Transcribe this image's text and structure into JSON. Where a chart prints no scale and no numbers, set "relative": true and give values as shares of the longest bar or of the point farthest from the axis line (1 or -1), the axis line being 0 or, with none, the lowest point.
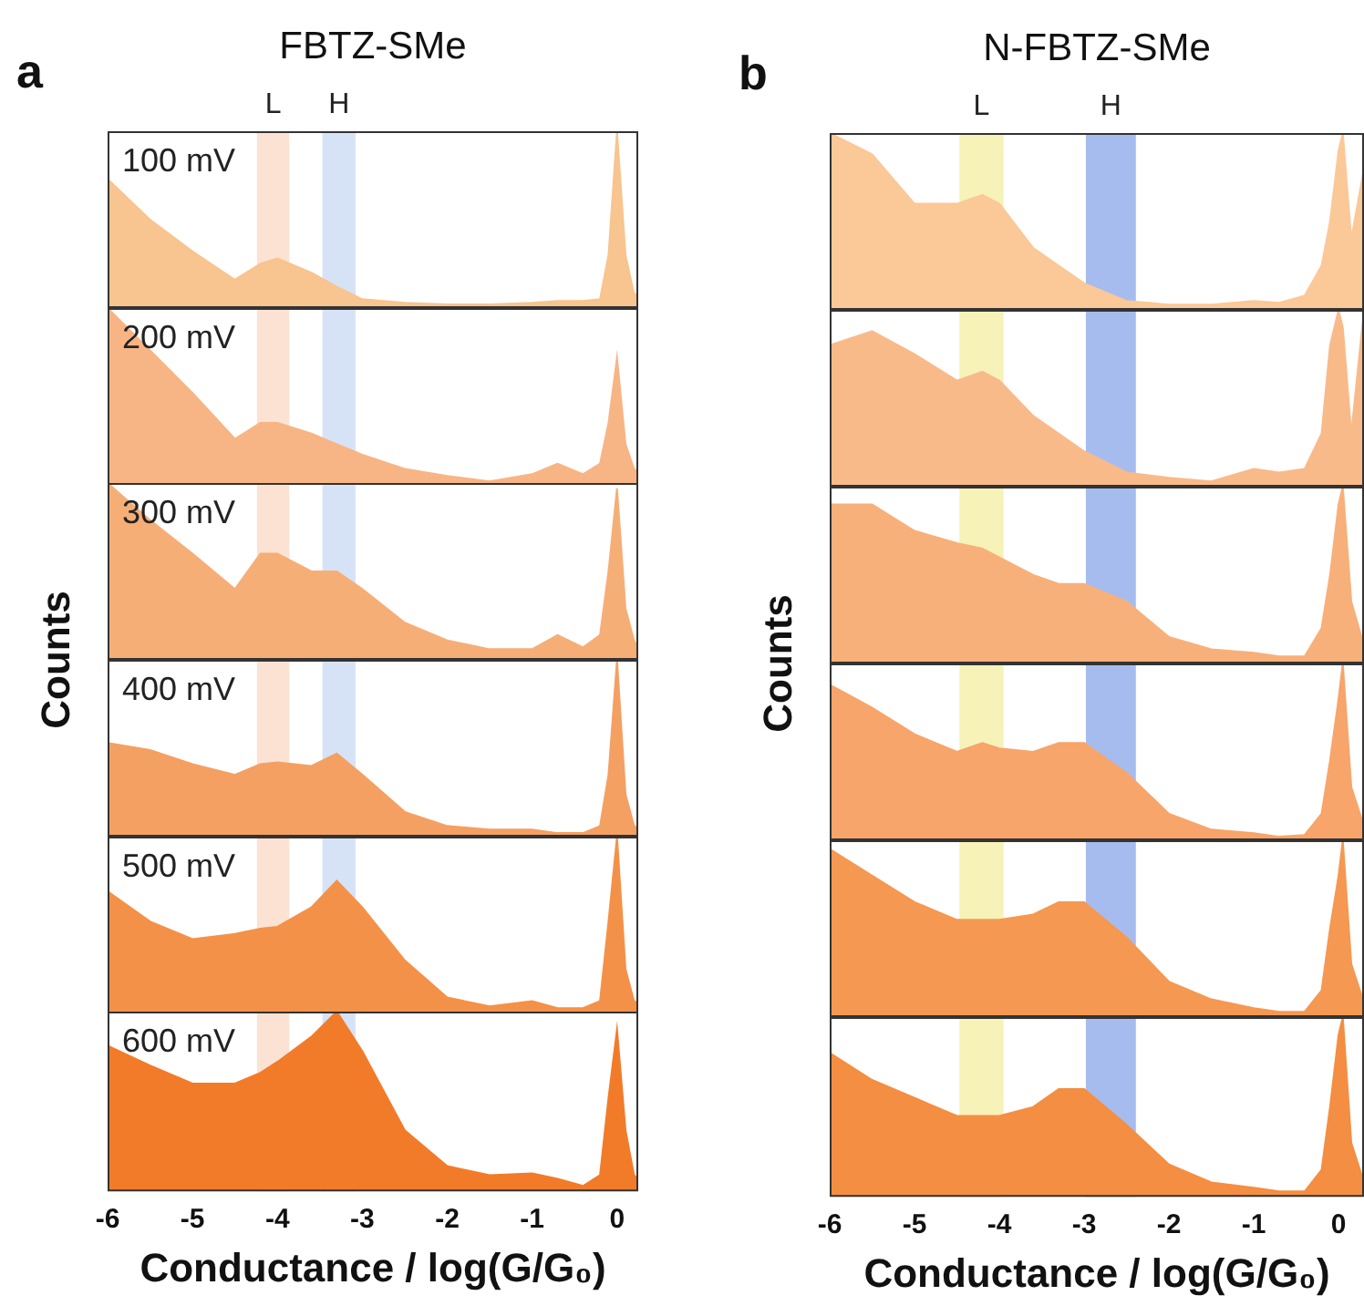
{
  "chart_data": [
    {
      "type": "area",
      "title": "FBTZ-SMe",
      "subtitle": "100 mV",
      "annotations": [
        "a"
      ],
      "relative": true,
      "tick_labels": false,
      "xlim": [
        -6,
        0.25
      ],
      "x": [
        -6,
        -5.5,
        -5,
        -4.5,
        -4.2,
        -4,
        -3.6,
        -3.3,
        -3,
        -2.5,
        -2,
        -1.5,
        -1,
        -0.7,
        -0.4,
        -0.2,
        -0.1,
        0,
        0.1,
        0.2,
        0.25
      ],
      "series": [
        {
          "color": "#f8c48f",
          "values": [
            0.73,
            0.5,
            0.32,
            0.16,
            0.25,
            0.28,
            0.2,
            0.12,
            0.05,
            0.03,
            0.02,
            0.02,
            0.03,
            0.04,
            0.04,
            0.05,
            0.3,
            1,
            0.3,
            0.08,
            0.08
          ]
        }
      ],
      "bands": [
        {
          "axis": "x",
          "from": -4.24,
          "to": -3.86,
          "label": "L",
          "color": "#fbe2d3"
        },
        {
          "axis": "x",
          "from": -3.47,
          "to": -3.08,
          "label": "H",
          "color": "#d6e3f7"
        }
      ]
    },
    {
      "type": "area",
      "subtitle": "200 mV",
      "relative": true,
      "tick_labels": false,
      "xlim": [
        -6,
        0.25
      ],
      "x": [
        -6,
        -5.5,
        -5,
        -4.5,
        -4.2,
        -4,
        -3.6,
        -3.3,
        -3,
        -2.5,
        -2,
        -1.5,
        -1,
        -0.7,
        -0.4,
        -0.2,
        -0.1,
        0,
        0.1,
        0.2,
        0.25
      ],
      "series": [
        {
          "color": "#f7b585",
          "values": [
            1,
            0.76,
            0.52,
            0.26,
            0.35,
            0.35,
            0.29,
            0.23,
            0.17,
            0.09,
            0.05,
            0.02,
            0.06,
            0.12,
            0.06,
            0.12,
            0.35,
            0.72,
            0.23,
            0.09,
            0.07
          ]
        }
      ],
      "bands": [
        {
          "axis": "x",
          "from": -4.24,
          "to": -3.86,
          "color": "#fbe2d3"
        },
        {
          "axis": "x",
          "from": -3.47,
          "to": -3.08,
          "color": "#d6e3f7"
        }
      ]
    },
    {
      "type": "area",
      "subtitle": "300 mV",
      "ylabel": "Counts",
      "relative": true,
      "tick_labels": false,
      "xlim": [
        -6,
        0.25
      ],
      "x": [
        -6,
        -5.5,
        -5,
        -4.5,
        -4.2,
        -4,
        -3.6,
        -3.3,
        -3,
        -2.5,
        -2,
        -1.5,
        -1,
        -0.7,
        -0.4,
        -0.2,
        -0.1,
        0,
        0.1,
        0.2,
        0.25
      ],
      "series": [
        {
          "color": "#f6ae77",
          "values": [
            1,
            0.79,
            0.6,
            0.4,
            0.6,
            0.6,
            0.5,
            0.5,
            0.4,
            0.21,
            0.11,
            0.06,
            0.06,
            0.14,
            0.07,
            0.14,
            0.5,
            0.97,
            0.29,
            0.11,
            0.07
          ]
        }
      ],
      "bands": [
        {
          "axis": "x",
          "from": -4.24,
          "to": -3.86,
          "color": "#fbe2d3"
        },
        {
          "axis": "x",
          "from": -3.47,
          "to": -3.08,
          "color": "#d6e3f7"
        }
      ]
    },
    {
      "type": "area",
      "subtitle": "400 mV",
      "relative": true,
      "tick_labels": false,
      "xlim": [
        -6,
        0.25
      ],
      "x": [
        -6,
        -5.5,
        -5,
        -4.5,
        -4.2,
        -4,
        -3.6,
        -3.3,
        -3,
        -2.5,
        -2,
        -1.5,
        -1,
        -0.7,
        -0.4,
        -0.2,
        -0.1,
        0,
        0.1,
        0.2,
        0.25
      ],
      "series": [
        {
          "color": "#f4a063",
          "values": [
            0.53,
            0.49,
            0.41,
            0.35,
            0.41,
            0.42,
            0.4,
            0.47,
            0.35,
            0.14,
            0.06,
            0.04,
            0.04,
            0.02,
            0.02,
            0.06,
            0.35,
            1,
            0.24,
            0.06,
            0.05
          ]
        }
      ],
      "bands": [
        {
          "axis": "x",
          "from": -4.24,
          "to": -3.86,
          "color": "#fbe2d3"
        },
        {
          "axis": "x",
          "from": -3.47,
          "to": -3.08,
          "color": "#d6e3f7"
        }
      ]
    },
    {
      "type": "area",
      "subtitle": "500 mV",
      "relative": true,
      "tick_labels": false,
      "xlim": [
        -6,
        0.25
      ],
      "x": [
        -6,
        -5.5,
        -5,
        -4.5,
        -4.2,
        -4,
        -3.6,
        -3.3,
        -3,
        -2.5,
        -2,
        -1.5,
        -1,
        -0.7,
        -0.4,
        -0.2,
        -0.1,
        0,
        0.1,
        0.2,
        0.25
      ],
      "series": [
        {
          "color": "#f49148",
          "values": [
            0.69,
            0.52,
            0.42,
            0.45,
            0.48,
            0.49,
            0.6,
            0.75,
            0.6,
            0.3,
            0.09,
            0.04,
            0.07,
            0.03,
            0.03,
            0.07,
            0.52,
            1,
            0.25,
            0.07,
            0.06
          ]
        }
      ],
      "bands": [
        {
          "axis": "x",
          "from": -4.24,
          "to": -3.86,
          "color": "#fbe2d3"
        },
        {
          "axis": "x",
          "from": -3.47,
          "to": -3.08,
          "color": "#d6e3f7"
        }
      ]
    },
    {
      "type": "area",
      "subtitle": "600 mV",
      "xlabel": "Conductance / log(G/G₀)",
      "relative": true,
      "tick_labels": "x",
      "xlim": [
        -6,
        0.25
      ],
      "xticks": [
        -6,
        -5,
        -4,
        -3,
        -2,
        -1,
        0
      ],
      "x": [
        -6,
        -5.5,
        -5,
        -4.5,
        -4.2,
        -4,
        -3.6,
        -3.3,
        -3,
        -2.5,
        -2,
        -1.5,
        -1,
        -0.7,
        -0.4,
        -0.2,
        -0.1,
        0,
        0.1,
        0.2,
        0.25
      ],
      "series": [
        {
          "color": "#f27b2a",
          "values": [
            0.81,
            0.7,
            0.6,
            0.6,
            0.66,
            0.72,
            0.86,
            1,
            0.78,
            0.34,
            0.14,
            0.09,
            0.1,
            0.07,
            0.03,
            0.09,
            0.52,
            0.9,
            0.34,
            0.09,
            0.07
          ]
        }
      ],
      "bands": [
        {
          "axis": "x",
          "from": -4.24,
          "to": -3.86,
          "color": "#fbe2d3"
        },
        {
          "axis": "x",
          "from": -3.47,
          "to": -3.08,
          "color": "#d6e3f7"
        }
      ]
    },
    {
      "type": "area",
      "title": "N-FBTZ-SMe",
      "annotations": [
        "b"
      ],
      "relative": true,
      "tick_labels": false,
      "xlim": [
        -6,
        0.3
      ],
      "x": [
        -6,
        -5.5,
        -5,
        -4.5,
        -4.2,
        -4,
        -3.6,
        -3.3,
        -3,
        -2.5,
        -2,
        -1.5,
        -1,
        -0.7,
        -0.4,
        -0.2,
        -0.1,
        0,
        0.05,
        0.15,
        0.3
      ],
      "series": [
        {
          "color": "#fbc898",
          "values": [
            1,
            0.88,
            0.6,
            0.6,
            0.65,
            0.6,
            0.35,
            0.25,
            0.15,
            0.05,
            0.03,
            0.03,
            0.05,
            0.04,
            0.08,
            0.25,
            0.5,
            0.9,
            1,
            0.4,
            0.8
          ]
        }
      ],
      "bands": [
        {
          "axis": "x",
          "from": -4.47,
          "to": -3.95,
          "label": "L",
          "color": "#f6f2b8"
        },
        {
          "axis": "x",
          "from": -2.98,
          "to": -2.39,
          "label": "H",
          "color": "#a6bcee"
        }
      ]
    },
    {
      "type": "area",
      "relative": true,
      "tick_labels": false,
      "xlim": [
        -6,
        0.3
      ],
      "x": [
        -6,
        -5.5,
        -5,
        -4.5,
        -4.2,
        -4,
        -3.6,
        -3.3,
        -3,
        -2.5,
        -2,
        -1.5,
        -1,
        -0.7,
        -0.4,
        -0.2,
        -0.1,
        0,
        0.05,
        0.15,
        0.3
      ],
      "series": [
        {
          "color": "#f9ba8a",
          "values": [
            0.8,
            0.88,
            0.75,
            0.6,
            0.65,
            0.6,
            0.4,
            0.3,
            0.2,
            0.08,
            0.05,
            0.03,
            0.1,
            0.08,
            0.1,
            0.3,
            0.8,
            1,
            0.9,
            0.3,
            1
          ]
        }
      ],
      "bands": [
        {
          "axis": "x",
          "from": -4.47,
          "to": -3.95,
          "color": "#f6f2b8"
        },
        {
          "axis": "x",
          "from": -2.98,
          "to": -2.39,
          "color": "#a6bcee"
        }
      ]
    },
    {
      "type": "area",
      "ylabel": "Counts",
      "relative": true,
      "tick_labels": false,
      "xlim": [
        -6,
        0.3
      ],
      "x": [
        -6,
        -5.5,
        -5,
        -4.5,
        -4.2,
        -4,
        -3.6,
        -3.3,
        -3,
        -2.5,
        -2,
        -1.5,
        -1,
        -0.7,
        -0.4,
        -0.2,
        -0.1,
        0,
        0.05,
        0.15,
        0.3
      ],
      "series": [
        {
          "color": "#f8b07a",
          "values": [
            0.9,
            0.9,
            0.75,
            0.68,
            0.65,
            0.6,
            0.5,
            0.45,
            0.45,
            0.35,
            0.15,
            0.08,
            0.06,
            0.04,
            0.04,
            0.2,
            0.5,
            0.9,
            1,
            0.35,
            0.1
          ]
        }
      ],
      "bands": [
        {
          "axis": "x",
          "from": -4.47,
          "to": -3.95,
          "color": "#f6f2b8"
        },
        {
          "axis": "x",
          "from": -2.98,
          "to": -2.39,
          "color": "#a6bcee"
        }
      ]
    },
    {
      "type": "area",
      "relative": true,
      "tick_labels": false,
      "xlim": [
        -6,
        0.3
      ],
      "x": [
        -6,
        -5.5,
        -5,
        -4.5,
        -4.2,
        -4,
        -3.6,
        -3.3,
        -3,
        -2.5,
        -2,
        -1.5,
        -1,
        -0.7,
        -0.4,
        -0.2,
        -0.1,
        0,
        0.05,
        0.15,
        0.3
      ],
      "series": [
        {
          "color": "#f7a56a",
          "values": [
            0.88,
            0.75,
            0.6,
            0.5,
            0.55,
            0.52,
            0.5,
            0.55,
            0.55,
            0.38,
            0.15,
            0.06,
            0.04,
            0.02,
            0.03,
            0.15,
            0.45,
            0.8,
            1,
            0.3,
            0.08
          ]
        }
      ],
      "bands": [
        {
          "axis": "x",
          "from": -4.47,
          "to": -3.95,
          "color": "#f6f2b8"
        },
        {
          "axis": "x",
          "from": -2.98,
          "to": -2.39,
          "color": "#a6bcee"
        }
      ]
    },
    {
      "type": "area",
      "relative": true,
      "tick_labels": false,
      "xlim": [
        -6,
        0.3
      ],
      "x": [
        -6,
        -5.5,
        -5,
        -4.5,
        -4.2,
        -4,
        -3.6,
        -3.3,
        -3,
        -2.5,
        -2,
        -1.5,
        -1,
        -0.7,
        -0.4,
        -0.2,
        -0.1,
        0,
        0.05,
        0.15,
        0.3
      ],
      "series": [
        {
          "color": "#f59852",
          "values": [
            0.95,
            0.8,
            0.65,
            0.55,
            0.55,
            0.55,
            0.58,
            0.65,
            0.65,
            0.45,
            0.2,
            0.1,
            0.05,
            0.03,
            0.03,
            0.15,
            0.5,
            0.8,
            1,
            0.3,
            0.08
          ]
        }
      ],
      "bands": [
        {
          "axis": "x",
          "from": -4.47,
          "to": -3.95,
          "color": "#f6f2b8"
        },
        {
          "axis": "x",
          "from": -2.98,
          "to": -2.39,
          "color": "#a6bcee"
        }
      ]
    },
    {
      "type": "area",
      "xlabel": "Conductance / log(G/G₀)",
      "relative": true,
      "tick_labels": "x",
      "xlim": [
        -6,
        0.3
      ],
      "xticks": [
        -6,
        -5,
        -4,
        -3,
        -2,
        -1,
        0
      ],
      "x": [
        -6,
        -5.5,
        -5,
        -4.5,
        -4.2,
        -4,
        -3.6,
        -3.3,
        -3,
        -2.5,
        -2,
        -1.5,
        -1,
        -0.7,
        -0.4,
        -0.2,
        -0.1,
        0,
        0.05,
        0.15,
        0.3
      ],
      "series": [
        {
          "color": "#f48e42",
          "values": [
            0.8,
            0.65,
            0.55,
            0.45,
            0.45,
            0.45,
            0.5,
            0.6,
            0.6,
            0.4,
            0.18,
            0.08,
            0.05,
            0.03,
            0.03,
            0.15,
            0.5,
            0.9,
            1,
            0.3,
            0.08
          ]
        }
      ],
      "bands": [
        {
          "axis": "x",
          "from": -4.47,
          "to": -3.95,
          "color": "#f6f2b8"
        },
        {
          "axis": "x",
          "from": -2.98,
          "to": -2.39,
          "color": "#a6bcee"
        }
      ]
    }
  ]
}
